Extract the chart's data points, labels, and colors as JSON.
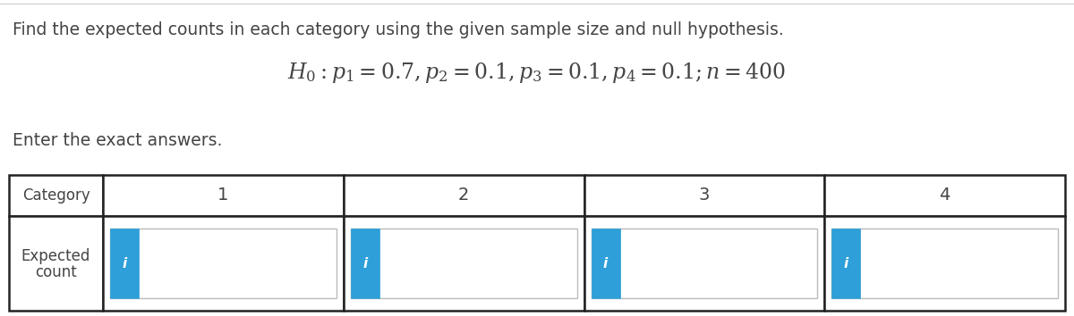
{
  "title_text": "Find the expected counts in each category using the given sample size and null hypothesis.",
  "formula_text": "$H_0 : p_1 = 0.7, p_2 = 0.1, p_3 = 0.1, p_4 = 0.1; n = 400$",
  "subtitle_text": "Enter the exact answers.",
  "categories": [
    "1",
    "2",
    "3",
    "4"
  ],
  "row1_label": "Category",
  "row2_label_line1": "Expected",
  "row2_label_line2": "count",
  "bg_color": "#ffffff",
  "text_color": "#444444",
  "table_border_color": "#222222",
  "input_box_bg": "#ffffff",
  "input_box_border": "#bbbbbb",
  "blue_btn_color": "#2e9fd8",
  "title_fontsize": 13.5,
  "formula_fontsize": 17,
  "subtitle_fontsize": 13.5,
  "cat_fontsize": 14,
  "label_fontsize": 12,
  "i_fontsize": 11
}
